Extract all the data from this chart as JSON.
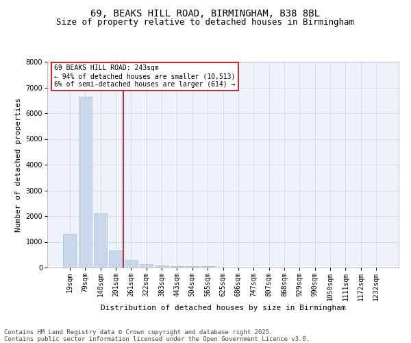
{
  "title_line1": "69, BEAKS HILL ROAD, BIRMINGHAM, B38 8BL",
  "title_line2": "Size of property relative to detached houses in Birmingham",
  "xlabel": "Distribution of detached houses by size in Birmingham",
  "ylabel": "Number of detached properties",
  "footer_line1": "Contains HM Land Registry data © Crown copyright and database right 2025.",
  "footer_line2": "Contains public sector information licensed under the Open Government Licence v3.0.",
  "annotation_line1": "69 BEAKS HILL ROAD: 243sqm",
  "annotation_line2": "← 94% of detached houses are smaller (10,513)",
  "annotation_line3": "6% of semi-detached houses are larger (614) →",
  "categories": [
    "19sqm",
    "79sqm",
    "140sqm",
    "201sqm",
    "261sqm",
    "322sqm",
    "383sqm",
    "443sqm",
    "504sqm",
    "565sqm",
    "625sqm",
    "686sqm",
    "747sqm",
    "807sqm",
    "868sqm",
    "929sqm",
    "990sqm",
    "1050sqm",
    "1111sqm",
    "1172sqm",
    "1232sqm"
  ],
  "values": [
    1320,
    6640,
    2100,
    680,
    300,
    140,
    85,
    50,
    45,
    60,
    5,
    5,
    3,
    2,
    2,
    1,
    1,
    1,
    0,
    0,
    0
  ],
  "bar_color": "#c8d8ea",
  "bar_edgecolor": "#a8c0d8",
  "vline_color": "#cc0000",
  "vline_x_index": 3.5,
  "annotation_box_edgecolor": "#cc0000",
  "annotation_box_facecolor": "#ffffff",
  "ylim": [
    0,
    8000
  ],
  "yticks": [
    0,
    1000,
    2000,
    3000,
    4000,
    5000,
    6000,
    7000,
    8000
  ],
  "grid_color": "#ccd8ec",
  "bg_color": "#eef2fa",
  "title_fontsize": 10,
  "subtitle_fontsize": 9,
  "axis_label_fontsize": 8,
  "tick_fontsize": 7,
  "annotation_fontsize": 7,
  "footer_fontsize": 6.5
}
